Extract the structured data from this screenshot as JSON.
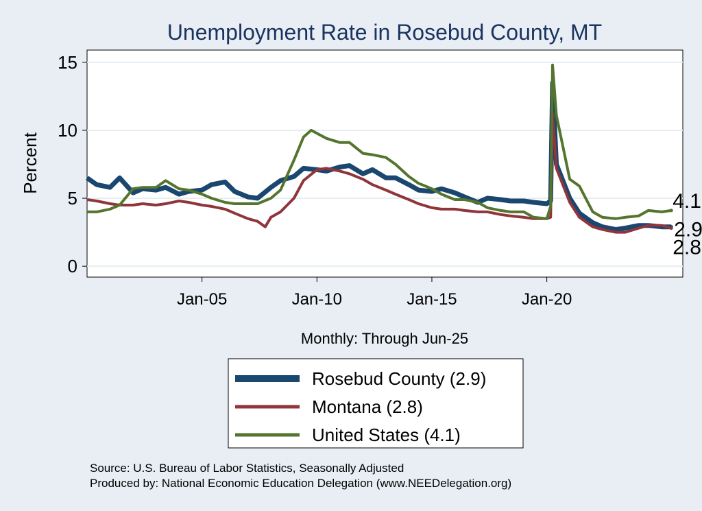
{
  "chart_data": {
    "type": "line",
    "title": "Unemployment Rate in Rosebud  County, MT",
    "ylabel": "Percent",
    "xlabel": "Monthly: Through Jun-25",
    "x_ticks": [
      "Jan-05",
      "Jan-10",
      "Jan-15",
      "Jan-20"
    ],
    "y_ticks": [
      0,
      5,
      10,
      15
    ],
    "ylim": [
      -0.8,
      15.9
    ],
    "xlim": [
      "2000-01",
      "2025-12"
    ],
    "grid": true,
    "legend_position": "bottom",
    "series": [
      {
        "name": "Rosebud  County (2.9)",
        "color": "#1a476f",
        "end_label": "2.9",
        "points": [
          [
            "2000-01",
            6.5
          ],
          [
            "2000-06",
            6.0
          ],
          [
            "2001-01",
            5.8
          ],
          [
            "2001-06",
            6.5
          ],
          [
            "2002-01",
            5.4
          ],
          [
            "2002-06",
            5.7
          ],
          [
            "2003-01",
            5.6
          ],
          [
            "2003-06",
            5.8
          ],
          [
            "2004-01",
            5.3
          ],
          [
            "2004-06",
            5.5
          ],
          [
            "2005-01",
            5.6
          ],
          [
            "2005-06",
            6.0
          ],
          [
            "2006-01",
            6.2
          ],
          [
            "2006-06",
            5.5
          ],
          [
            "2007-01",
            5.1
          ],
          [
            "2007-06",
            5.0
          ],
          [
            "2008-01",
            5.8
          ],
          [
            "2008-06",
            6.3
          ],
          [
            "2009-01",
            6.6
          ],
          [
            "2009-06",
            7.2
          ],
          [
            "2010-01",
            7.1
          ],
          [
            "2010-06",
            7.0
          ],
          [
            "2011-01",
            7.3
          ],
          [
            "2011-06",
            7.4
          ],
          [
            "2012-01",
            6.8
          ],
          [
            "2012-06",
            7.1
          ],
          [
            "2013-01",
            6.5
          ],
          [
            "2013-06",
            6.5
          ],
          [
            "2014-01",
            6.0
          ],
          [
            "2014-06",
            5.6
          ],
          [
            "2015-01",
            5.5
          ],
          [
            "2015-06",
            5.7
          ],
          [
            "2016-01",
            5.4
          ],
          [
            "2016-06",
            5.1
          ],
          [
            "2017-01",
            4.7
          ],
          [
            "2017-06",
            5.0
          ],
          [
            "2018-01",
            4.9
          ],
          [
            "2018-06",
            4.8
          ],
          [
            "2019-01",
            4.8
          ],
          [
            "2019-06",
            4.7
          ],
          [
            "2020-01",
            4.6
          ],
          [
            "2020-03",
            4.8
          ],
          [
            "2020-04",
            13.5
          ],
          [
            "2020-06",
            7.5
          ],
          [
            "2021-01",
            5.0
          ],
          [
            "2021-06",
            3.9
          ],
          [
            "2022-01",
            3.2
          ],
          [
            "2022-06",
            2.9
          ],
          [
            "2023-01",
            2.7
          ],
          [
            "2023-06",
            2.8
          ],
          [
            "2024-01",
            3.0
          ],
          [
            "2024-06",
            3.0
          ],
          [
            "2025-01",
            2.9
          ],
          [
            "2025-06",
            2.9
          ]
        ]
      },
      {
        "name": "Montana (2.8)",
        "color": "#90353b",
        "end_label": "2.8",
        "points": [
          [
            "2000-01",
            4.9
          ],
          [
            "2000-06",
            4.8
          ],
          [
            "2001-01",
            4.6
          ],
          [
            "2001-06",
            4.5
          ],
          [
            "2002-01",
            4.5
          ],
          [
            "2002-06",
            4.6
          ],
          [
            "2003-01",
            4.5
          ],
          [
            "2003-06",
            4.6
          ],
          [
            "2004-01",
            4.8
          ],
          [
            "2004-06",
            4.7
          ],
          [
            "2005-01",
            4.5
          ],
          [
            "2005-06",
            4.4
          ],
          [
            "2006-01",
            4.2
          ],
          [
            "2006-06",
            3.9
          ],
          [
            "2007-01",
            3.5
          ],
          [
            "2007-06",
            3.3
          ],
          [
            "2007-10",
            2.9
          ],
          [
            "2008-01",
            3.6
          ],
          [
            "2008-06",
            4.0
          ],
          [
            "2009-01",
            5.0
          ],
          [
            "2009-06",
            6.3
          ],
          [
            "2010-01",
            7.1
          ],
          [
            "2010-06",
            7.2
          ],
          [
            "2011-01",
            7.0
          ],
          [
            "2011-06",
            6.8
          ],
          [
            "2012-01",
            6.4
          ],
          [
            "2012-06",
            6.0
          ],
          [
            "2013-01",
            5.6
          ],
          [
            "2013-06",
            5.3
          ],
          [
            "2014-01",
            4.9
          ],
          [
            "2014-06",
            4.6
          ],
          [
            "2015-01",
            4.3
          ],
          [
            "2015-06",
            4.2
          ],
          [
            "2016-01",
            4.2
          ],
          [
            "2016-06",
            4.1
          ],
          [
            "2017-01",
            4.0
          ],
          [
            "2017-06",
            4.0
          ],
          [
            "2018-01",
            3.8
          ],
          [
            "2018-06",
            3.7
          ],
          [
            "2019-01",
            3.6
          ],
          [
            "2019-06",
            3.5
          ],
          [
            "2020-01",
            3.5
          ],
          [
            "2020-03",
            3.6
          ],
          [
            "2020-04",
            11.3
          ],
          [
            "2020-06",
            7.2
          ],
          [
            "2021-01",
            4.7
          ],
          [
            "2021-06",
            3.6
          ],
          [
            "2022-01",
            2.9
          ],
          [
            "2022-06",
            2.7
          ],
          [
            "2023-01",
            2.5
          ],
          [
            "2023-06",
            2.5
          ],
          [
            "2024-01",
            2.8
          ],
          [
            "2024-06",
            3.0
          ],
          [
            "2025-01",
            3.0
          ],
          [
            "2025-06",
            2.8
          ]
        ]
      },
      {
        "name": "United States (4.1)",
        "color": "#55752f",
        "end_label": "4.1",
        "points": [
          [
            "2000-01",
            4.0
          ],
          [
            "2000-06",
            4.0
          ],
          [
            "2001-01",
            4.2
          ],
          [
            "2001-06",
            4.5
          ],
          [
            "2002-01",
            5.7
          ],
          [
            "2002-06",
            5.8
          ],
          [
            "2003-01",
            5.8
          ],
          [
            "2003-06",
            6.3
          ],
          [
            "2004-01",
            5.7
          ],
          [
            "2004-06",
            5.6
          ],
          [
            "2005-01",
            5.3
          ],
          [
            "2005-06",
            5.0
          ],
          [
            "2006-01",
            4.7
          ],
          [
            "2006-06",
            4.6
          ],
          [
            "2007-01",
            4.6
          ],
          [
            "2007-06",
            4.6
          ],
          [
            "2008-01",
            5.0
          ],
          [
            "2008-06",
            5.6
          ],
          [
            "2009-01",
            7.8
          ],
          [
            "2009-06",
            9.5
          ],
          [
            "2009-10",
            10.0
          ],
          [
            "2010-06",
            9.4
          ],
          [
            "2011-01",
            9.1
          ],
          [
            "2011-06",
            9.1
          ],
          [
            "2012-01",
            8.3
          ],
          [
            "2012-06",
            8.2
          ],
          [
            "2013-01",
            8.0
          ],
          [
            "2013-06",
            7.5
          ],
          [
            "2014-01",
            6.6
          ],
          [
            "2014-06",
            6.1
          ],
          [
            "2015-01",
            5.7
          ],
          [
            "2015-06",
            5.3
          ],
          [
            "2016-01",
            4.9
          ],
          [
            "2016-06",
            4.9
          ],
          [
            "2017-01",
            4.7
          ],
          [
            "2017-06",
            4.3
          ],
          [
            "2018-01",
            4.1
          ],
          [
            "2018-06",
            4.0
          ],
          [
            "2019-01",
            4.0
          ],
          [
            "2019-06",
            3.6
          ],
          [
            "2020-01",
            3.5
          ],
          [
            "2020-03",
            4.4
          ],
          [
            "2020-04",
            14.8
          ],
          [
            "2020-06",
            11.1
          ],
          [
            "2021-01",
            6.4
          ],
          [
            "2021-06",
            5.9
          ],
          [
            "2022-01",
            4.0
          ],
          [
            "2022-06",
            3.6
          ],
          [
            "2023-01",
            3.5
          ],
          [
            "2023-06",
            3.6
          ],
          [
            "2024-01",
            3.7
          ],
          [
            "2024-06",
            4.1
          ],
          [
            "2025-01",
            4.0
          ],
          [
            "2025-06",
            4.1
          ]
        ]
      }
    ]
  },
  "source_line1": "Source: U.S. Bureau of Labor Statistics, Seasonally Adjusted",
  "source_line2": "Produced by: National Economic Education Delegation (www.NEEDelegation.org)",
  "colors": {
    "background": "#e8eef4",
    "plot_background": "#ffffff",
    "title": "#1a3360",
    "grid": "#e6eef2"
  }
}
